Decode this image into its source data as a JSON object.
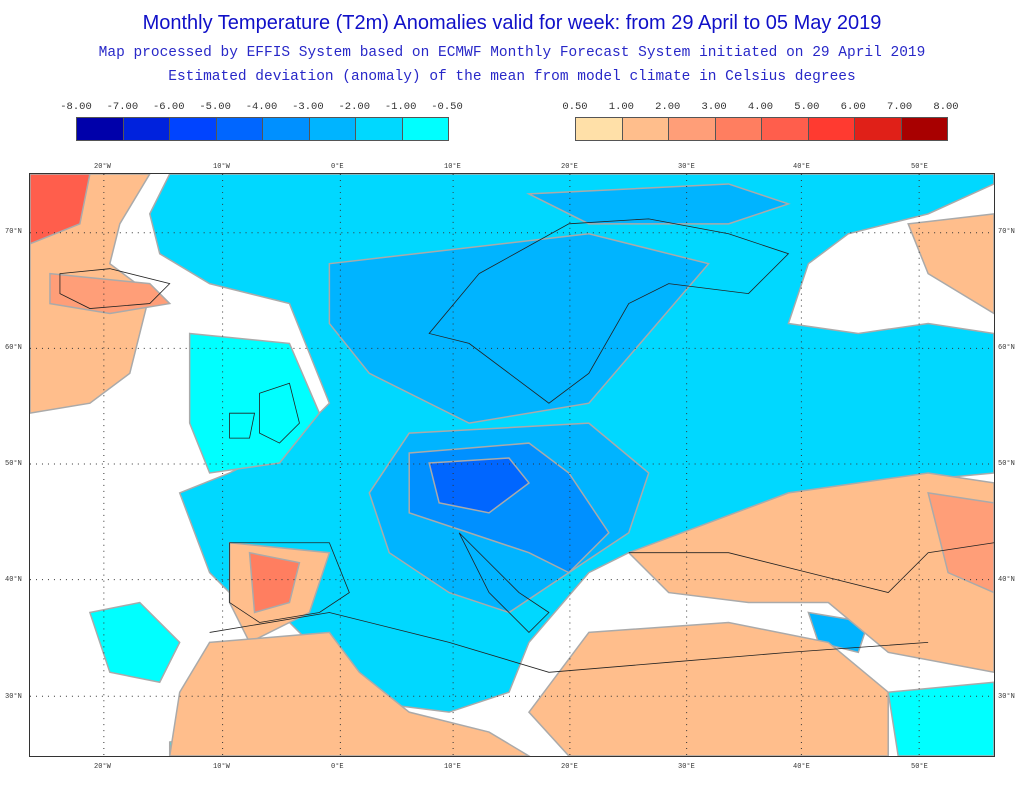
{
  "title": "Monthly Temperature (T2m) Anomalies valid for week: from 29 April to 05 May 2019",
  "subtitle": "Map processed by EFFIS System based on ECMWF Monthly Forecast System initiated on 29 April 2019",
  "subtitle2": "Estimated deviation (anomaly) of the mean from model climate in Celsius degrees",
  "legend_cold": {
    "labels": [
      "-8.00",
      "-7.00",
      "-6.00",
      "-5.00",
      "-4.00",
      "-3.00",
      "-2.00",
      "-1.00",
      "-0.50"
    ],
    "colors": [
      "#0000aa",
      "#0022dd",
      "#0044ff",
      "#0066ff",
      "#0090ff",
      "#00b4ff",
      "#00d8ff",
      "#00ffff"
    ]
  },
  "legend_warm": {
    "labels": [
      "0.50",
      "1.00",
      "2.00",
      "3.00",
      "4.00",
      "5.00",
      "6.00",
      "7.00",
      "8.00"
    ],
    "colors": [
      "#ffe0a8",
      "#ffbe8c",
      "#ff9e78",
      "#ff7e60",
      "#ff5e4c",
      "#ff3a30",
      "#e02018",
      "#a80000"
    ]
  },
  "lon_labels": [
    "20°W",
    "10°W",
    "0°E",
    "10°E",
    "20°E",
    "30°E",
    "40°E",
    "50°E"
  ],
  "lat_labels": [
    "70°N",
    "60°N",
    "50°N",
    "40°N",
    "30°N"
  ]
}
